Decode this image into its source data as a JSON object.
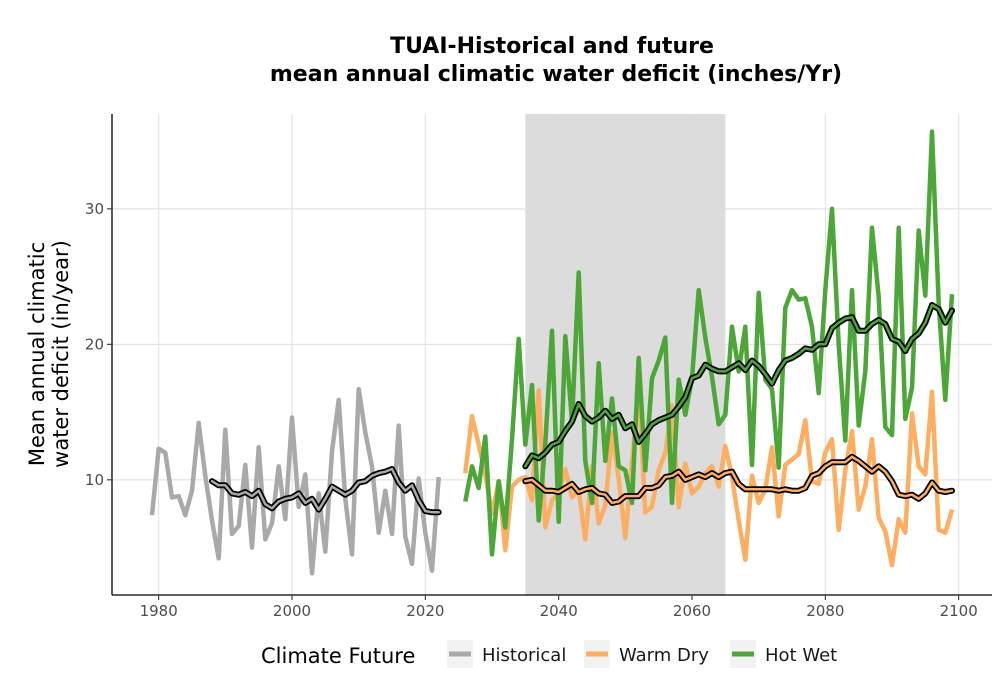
{
  "chart_data": {
    "type": "line",
    "title_line1": "TUAI-Historical and future",
    "title_line2": "mean annual climatic water deficit (inches/Yr)",
    "xlabel": "",
    "ylabel_line1": "Mean annual climatic",
    "ylabel_line2": "water deficit (in/year)",
    "xlim": [
      1973,
      2105
    ],
    "ylim": [
      1.5,
      37
    ],
    "x_ticks": [
      1980,
      2000,
      2020,
      2040,
      2060,
      2080,
      2100
    ],
    "y_ticks": [
      10,
      20,
      30
    ],
    "grid": true,
    "shaded_period": [
      2035,
      2065
    ],
    "legend": {
      "title": "Climate Future",
      "position": "bottom",
      "entries": [
        "Historical",
        "Warm Dry",
        "Hot Wet"
      ]
    },
    "colors": {
      "Historical": "#a9a9a9",
      "Warm Dry": "#fdae61",
      "Hot Wet": "#4ca638",
      "Rolling mean": "#000000",
      "Shading": "#dcdcdc"
    },
    "series": [
      {
        "name": "Historical",
        "color": "#a9a9a9",
        "x": [
          1979,
          1980,
          1981,
          1982,
          1983,
          1984,
          1985,
          1986,
          1987,
          1988,
          1989,
          1990,
          1991,
          1992,
          1993,
          1994,
          1995,
          1996,
          1997,
          1998,
          1999,
          2000,
          2001,
          2002,
          2003,
          2004,
          2005,
          2006,
          2007,
          2008,
          2009,
          2010,
          2011,
          2012,
          2013,
          2014,
          2015,
          2016,
          2017,
          2018,
          2019,
          2020,
          2021,
          2022
        ],
        "values": [
          7.4,
          12.3,
          12.0,
          8.7,
          8.8,
          7.4,
          9.2,
          14.2,
          10.3,
          7.0,
          4.2,
          13.7,
          6.0,
          6.6,
          11.1,
          5.0,
          12.4,
          5.6,
          6.8,
          11.0,
          7.1,
          14.6,
          8.0,
          10.4,
          3.1,
          9.0,
          4.7,
          12.1,
          15.9,
          8.6,
          4.5,
          16.7,
          13.5,
          11.0,
          6.1,
          9.2,
          6.0,
          14.0,
          5.8,
          3.8,
          10.1,
          6.1,
          3.3,
          10.2
        ]
      },
      {
        "name": "Warm Dry",
        "color": "#fdae61",
        "x": [
          2026,
          2027,
          2028,
          2029,
          2030,
          2031,
          2032,
          2033,
          2034,
          2035,
          2036,
          2037,
          2038,
          2039,
          2040,
          2041,
          2042,
          2043,
          2044,
          2045,
          2046,
          2047,
          2048,
          2049,
          2050,
          2051,
          2052,
          2053,
          2054,
          2055,
          2056,
          2057,
          2058,
          2059,
          2060,
          2061,
          2062,
          2063,
          2064,
          2065,
          2066,
          2067,
          2068,
          2069,
          2070,
          2071,
          2072,
          2073,
          2074,
          2075,
          2076,
          2077,
          2078,
          2079,
          2080,
          2081,
          2082,
          2083,
          2084,
          2085,
          2086,
          2087,
          2088,
          2089,
          2090,
          2091,
          2092,
          2093,
          2094,
          2095,
          2096,
          2097,
          2098,
          2099
        ],
        "values": [
          10.5,
          14.7,
          12.6,
          10.4,
          7.5,
          9.9,
          4.8,
          9.5,
          10.0,
          10.2,
          8.5,
          16.6,
          6.5,
          8.5,
          9.0,
          10.8,
          8.7,
          9.3,
          5.6,
          11.0,
          6.8,
          8.1,
          13.5,
          10.1,
          5.7,
          11.3,
          16.7,
          7.6,
          8.0,
          10.7,
          12.0,
          15.5,
          8.0,
          11.2,
          9.0,
          9.5,
          10.5,
          11.0,
          9.5,
          12.5,
          10.2,
          7.0,
          4.1,
          10.3,
          8.3,
          9.3,
          12.4,
          7.3,
          11.1,
          11.5,
          11.9,
          14.4,
          9.9,
          9.7,
          12.0,
          13.0,
          6.3,
          10.7,
          13.6,
          7.8,
          9.5,
          13.0,
          7.2,
          6.2,
          3.7,
          7.1,
          6.1,
          14.9,
          11.0,
          10.4,
          16.5,
          6.3,
          6.1,
          7.8
        ]
      },
      {
        "name": "Hot Wet",
        "color": "#4ca638",
        "x": [
          2026,
          2027,
          2028,
          2029,
          2030,
          2031,
          2032,
          2033,
          2034,
          2035,
          2036,
          2037,
          2038,
          2039,
          2040,
          2041,
          2042,
          2043,
          2044,
          2045,
          2046,
          2047,
          2048,
          2049,
          2050,
          2051,
          2052,
          2053,
          2054,
          2055,
          2056,
          2057,
          2058,
          2059,
          2060,
          2061,
          2062,
          2063,
          2064,
          2065,
          2066,
          2067,
          2068,
          2069,
          2070,
          2071,
          2072,
          2073,
          2074,
          2075,
          2076,
          2077,
          2078,
          2079,
          2080,
          2081,
          2082,
          2083,
          2084,
          2085,
          2086,
          2087,
          2088,
          2089,
          2090,
          2091,
          2092,
          2093,
          2094,
          2095,
          2096,
          2097,
          2098,
          2099
        ],
        "values": [
          8.4,
          11.0,
          9.4,
          13.2,
          4.5,
          9.9,
          6.5,
          13.0,
          20.4,
          12.6,
          17.0,
          7.0,
          12.7,
          21.0,
          6.9,
          20.6,
          14.3,
          25.3,
          11.4,
          8.3,
          18.6,
          11.4,
          16.0,
          11.0,
          10.7,
          8.3,
          19.0,
          10.7,
          17.5,
          18.8,
          20.5,
          8.3,
          17.4,
          14.8,
          17.5,
          24.0,
          20.5,
          17.6,
          14.1,
          14.8,
          21.3,
          18.0,
          21.3,
          11.1,
          23.8,
          17.4,
          16.7,
          10.9,
          22.7,
          24.0,
          23.3,
          23.4,
          21.3,
          16.4,
          24.0,
          30.0,
          20.0,
          12.9,
          24.0,
          14.0,
          18.0,
          28.6,
          23.5,
          13.9,
          13.3,
          28.6,
          14.5,
          16.8,
          28.4,
          23.6,
          35.7,
          23.0,
          15.9,
          23.7
        ]
      },
      {
        "name": "Rolling mean",
        "color": "#000000",
        "segments": [
          {
            "x": [
              1988,
              1989,
              1990,
              1991,
              1992,
              1993,
              1994,
              1995,
              1996,
              1997,
              1998,
              1999,
              2000,
              2001,
              2002,
              2003,
              2004,
              2005,
              2006,
              2007,
              2008,
              2009,
              2010,
              2011,
              2012,
              2013,
              2014,
              2015,
              2016,
              2017,
              2018,
              2019,
              2020,
              2021,
              2022
            ],
            "values": [
              9.9,
              9.6,
              9.6,
              9.0,
              8.9,
              9.1,
              8.8,
              9.2,
              8.2,
              7.9,
              8.4,
              8.6,
              8.7,
              9.0,
              8.3,
              8.6,
              7.8,
              8.6,
              9.5,
              9.2,
              8.9,
              9.2,
              9.8,
              9.9,
              10.3,
              10.5,
              10.6,
              10.8,
              9.8,
              9.2,
              9.6,
              8.5,
              7.7,
              7.6,
              7.6
            ]
          },
          {
            "x": [
              2035,
              2036,
              2037,
              2038,
              2039,
              2040,
              2041,
              2042,
              2043,
              2044,
              2045,
              2046,
              2047,
              2048,
              2049,
              2050,
              2051,
              2052,
              2053,
              2054,
              2055,
              2056,
              2057,
              2058,
              2059,
              2060,
              2061,
              2062,
              2063,
              2064,
              2065,
              2066,
              2067,
              2068,
              2069,
              2070,
              2071,
              2072,
              2073,
              2074,
              2075,
              2076,
              2077,
              2078,
              2079,
              2080,
              2081,
              2082,
              2083,
              2084,
              2085,
              2086,
              2087,
              2088,
              2089,
              2090,
              2091,
              2092,
              2093,
              2094,
              2095,
              2096,
              2097,
              2098,
              2099
            ],
            "values": [
              9.9,
              10.0,
              9.6,
              9.2,
              9.2,
              9.1,
              9.4,
              9.7,
              9.1,
              9.3,
              9.4,
              9.0,
              8.9,
              8.3,
              8.4,
              8.8,
              8.8,
              8.8,
              9.4,
              9.4,
              9.6,
              10.2,
              10.3,
              10.6,
              10.0,
              10.2,
              10.4,
              10.2,
              10.5,
              10.2,
              10.5,
              10.6,
              9.7,
              9.3,
              9.3,
              9.3,
              9.3,
              9.3,
              9.2,
              9.3,
              9.2,
              9.2,
              9.4,
              10.3,
              10.5,
              11.0,
              11.3,
              11.3,
              11.3,
              11.7,
              11.4,
              11.0,
              10.6,
              11.0,
              10.6,
              9.9,
              8.9,
              8.8,
              8.9,
              8.6,
              9.0,
              9.8,
              9.2,
              9.1,
              9.2
            ]
          },
          {
            "x": [
              2035,
              2036,
              2037,
              2038,
              2039,
              2040,
              2041,
              2042,
              2043,
              2044,
              2045,
              2046,
              2047,
              2048,
              2049,
              2050,
              2051,
              2052,
              2053,
              2054,
              2055,
              2056,
              2057,
              2058,
              2059,
              2060,
              2061,
              2062,
              2063,
              2064,
              2065,
              2066,
              2067,
              2068,
              2069,
              2070,
              2071,
              2072,
              2073,
              2074,
              2075,
              2076,
              2077,
              2078,
              2079,
              2080,
              2081,
              2082,
              2083,
              2084,
              2085,
              2086,
              2087,
              2088,
              2089,
              2090,
              2091,
              2092,
              2093,
              2094,
              2095,
              2096,
              2097,
              2098,
              2099
            ],
            "values": [
              11.0,
              11.8,
              11.6,
              12.0,
              12.6,
              12.8,
              13.6,
              14.3,
              15.6,
              14.7,
              14.3,
              14.6,
              15.1,
              14.5,
              14.8,
              13.8,
              14.1,
              12.8,
              13.4,
              14.1,
              14.4,
              14.6,
              14.8,
              15.4,
              16.1,
              17.5,
              17.7,
              18.5,
              18.2,
              18.0,
              18.0,
              18.3,
              18.6,
              18.1,
              18.8,
              18.4,
              17.8,
              17.1,
              18.1,
              18.8,
              19.0,
              19.3,
              19.7,
              19.6,
              20.0,
              20.0,
              21.2,
              21.6,
              21.9,
              22.0,
              21.0,
              21.0,
              21.5,
              21.8,
              21.5,
              20.4,
              20.2,
              19.5,
              20.4,
              20.8,
              21.6,
              22.9,
              22.6,
              21.6,
              22.5
            ]
          }
        ]
      }
    ]
  }
}
